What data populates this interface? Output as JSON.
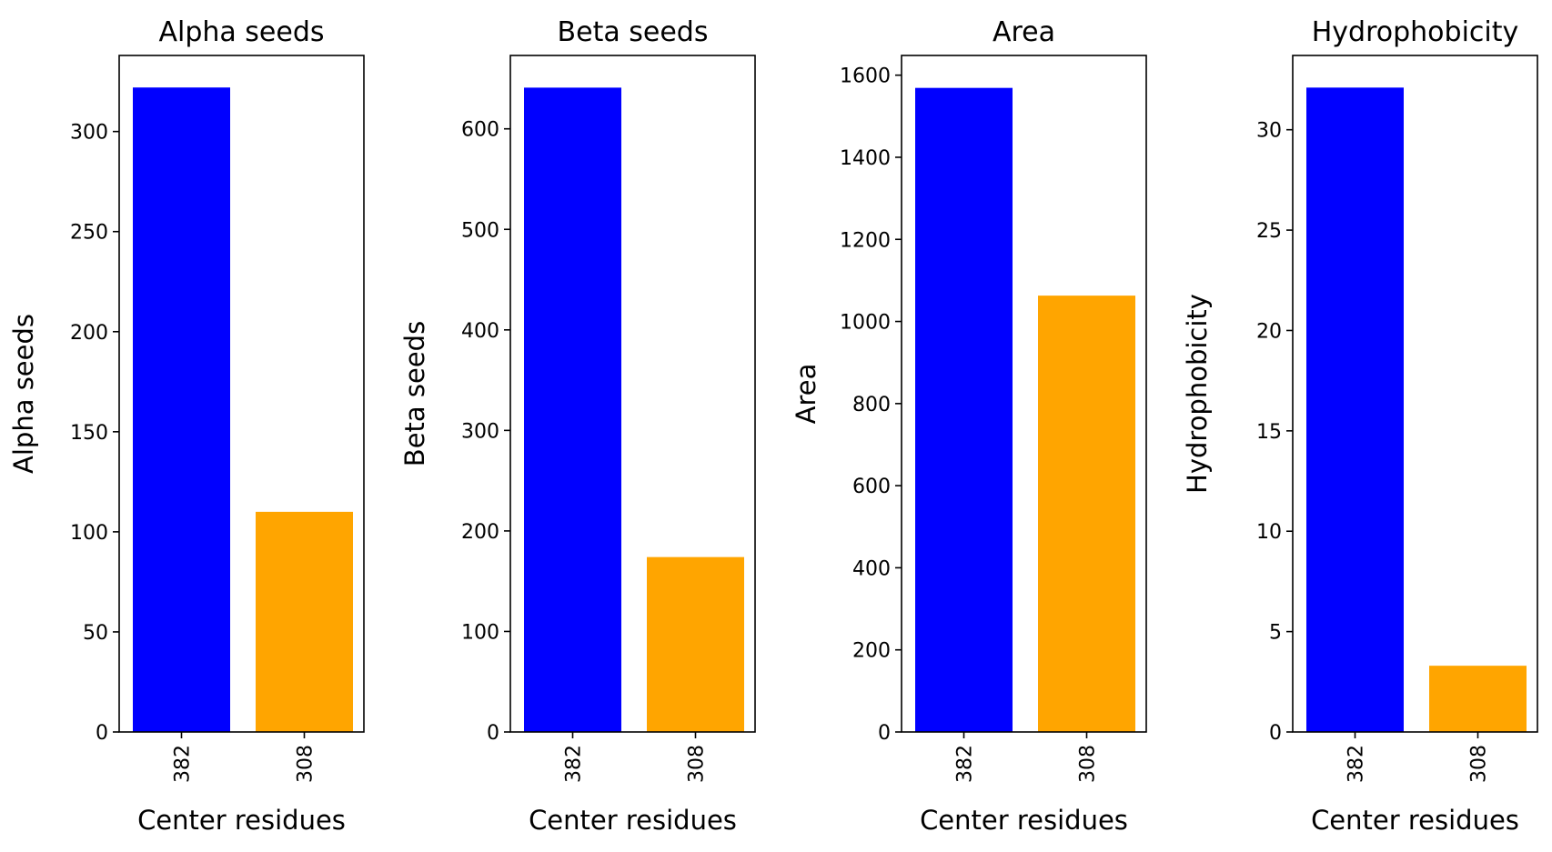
{
  "chart_data": [
    {
      "type": "bar",
      "title": "Alpha seeds",
      "xlabel": "Center residues",
      "ylabel": "Alpha seeds",
      "categories": [
        "382",
        "308"
      ],
      "values": [
        322,
        110
      ],
      "ylim": [
        0,
        338
      ],
      "yticks": [
        0,
        50,
        100,
        150,
        200,
        250,
        300
      ],
      "bar_colors": [
        "#0000ff",
        "#ffa500"
      ],
      "grid": false
    },
    {
      "type": "bar",
      "title": "Beta seeds",
      "xlabel": "Center residues",
      "ylabel": "Beta seeds",
      "categories": [
        "382",
        "308"
      ],
      "values": [
        641,
        174
      ],
      "ylim": [
        0,
        673
      ],
      "yticks": [
        0,
        100,
        200,
        300,
        400,
        500,
        600
      ],
      "bar_colors": [
        "#0000ff",
        "#ffa500"
      ],
      "grid": false
    },
    {
      "type": "bar",
      "title": "Area",
      "xlabel": "Center residues",
      "ylabel": "Area",
      "categories": [
        "382",
        "308"
      ],
      "values": [
        1569,
        1063
      ],
      "ylim": [
        0,
        1648
      ],
      "yticks": [
        0,
        200,
        400,
        600,
        800,
        1000,
        1200,
        1400,
        1600
      ],
      "bar_colors": [
        "#0000ff",
        "#ffa500"
      ],
      "grid": false
    },
    {
      "type": "bar",
      "title": "Hydrophobicity",
      "xlabel": "Center residues",
      "ylabel": "Hydrophobicity",
      "categories": [
        "382",
        "308"
      ],
      "values": [
        32.1,
        3.3
      ],
      "ylim": [
        0,
        33.7
      ],
      "yticks": [
        0,
        5,
        10,
        15,
        20,
        25,
        30
      ],
      "bar_colors": [
        "#0000ff",
        "#ffa500"
      ],
      "grid": false
    }
  ]
}
